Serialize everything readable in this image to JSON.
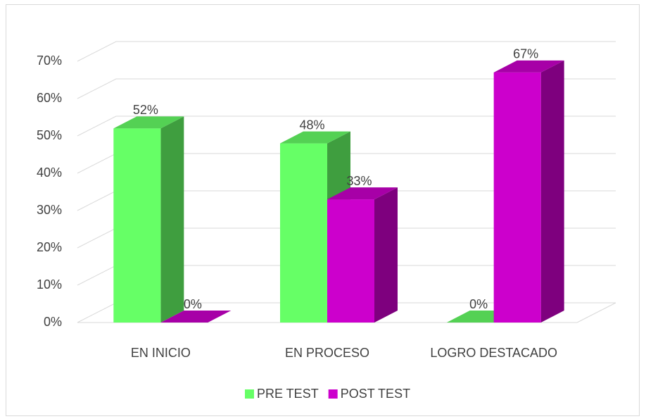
{
  "chart_data": {
    "type": "bar3d",
    "categories": [
      "EN INICIO",
      "EN PROCESO",
      "LOGRO DESTACADO"
    ],
    "series": [
      {
        "name": "PRE TEST",
        "color": "#66ff66",
        "values": [
          52,
          48,
          0
        ],
        "value_labels": [
          "52%",
          "48%",
          "0%"
        ]
      },
      {
        "name": "POST TEST",
        "color": "#cc00cc",
        "values": [
          0,
          33,
          67
        ],
        "value_labels": [
          "0%",
          "33%",
          "67%"
        ]
      }
    ],
    "ylim": [
      0,
      70
    ],
    "yticks": [
      {
        "value": 0,
        "label": "0%"
      },
      {
        "value": 10,
        "label": "10%"
      },
      {
        "value": 20,
        "label": "20%"
      },
      {
        "value": 30,
        "label": "30%"
      },
      {
        "value": 40,
        "label": "40%"
      },
      {
        "value": 50,
        "label": "50%"
      },
      {
        "value": 60,
        "label": "60%"
      },
      {
        "value": 70,
        "label": "70%"
      }
    ],
    "grid": true,
    "legend": "bottom"
  }
}
